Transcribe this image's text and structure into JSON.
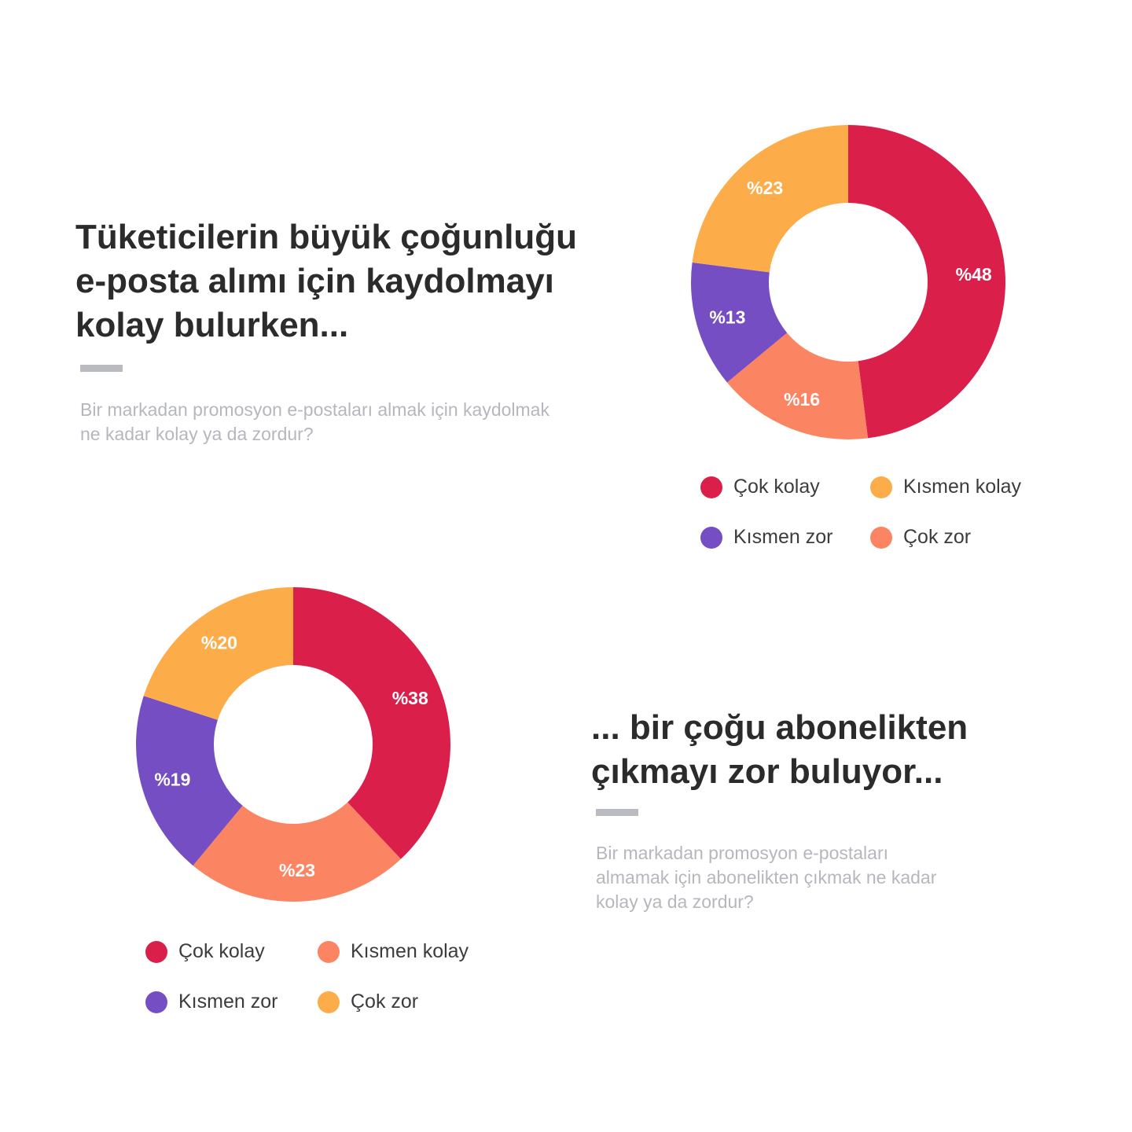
{
  "section1": {
    "heading": "Tüketicilerin büyük çoğunluğu\ne-posta alımı için kaydolmayı\nkolay bulurken...",
    "question": "Bir markadan promosyon e-postaları almak için kaydolmak\nne kadar kolay ya da zordur?"
  },
  "section2": {
    "heading": "... bir çoğu abonelikten\nçıkmayı zor buluyor...",
    "question": "Bir markadan promosyon e-postaları\nalmamak için abonelikten çıkmak ne kadar\nkolay ya da zordur?"
  },
  "colors": {
    "red": "#db1f4b",
    "salmon": "#fb8562",
    "purple": "#744ec2",
    "yellow": "#fdac4a"
  },
  "legend1": {
    "items": [
      {
        "label": "Çok kolay",
        "color": "#db1f4b"
      },
      {
        "label": "Kısmen kolay",
        "color": "#fdac4a"
      },
      {
        "label": "Kısmen zor",
        "color": "#744ec2"
      },
      {
        "label": "Çok zor",
        "color": "#fb8562"
      }
    ]
  },
  "legend2": {
    "items": [
      {
        "label": "Çok kolay",
        "color": "#db1f4b"
      },
      {
        "label": "Kısmen kolay",
        "color": "#fb8562"
      },
      {
        "label": "Kısmen zor",
        "color": "#744ec2"
      },
      {
        "label": "Çok zor",
        "color": "#fdac4a"
      }
    ]
  },
  "chart_data": [
    {
      "type": "pie",
      "title": "",
      "slices": [
        {
          "value": 48,
          "label": "%48",
          "color": "#db1f4b"
        },
        {
          "value": 16,
          "label": "%16",
          "color": "#fb8562"
        },
        {
          "value": 13,
          "label": "%13",
          "color": "#744ec2"
        },
        {
          "value": 23,
          "label": "%23",
          "color": "#fdac4a"
        }
      ]
    },
    {
      "type": "pie",
      "title": "",
      "slices": [
        {
          "value": 38,
          "label": "%38",
          "color": "#db1f4b"
        },
        {
          "value": 23,
          "label": "%23",
          "color": "#fb8562"
        },
        {
          "value": 19,
          "label": "%19",
          "color": "#744ec2"
        },
        {
          "value": 20,
          "label": "%20",
          "color": "#fdac4a"
        }
      ]
    }
  ]
}
